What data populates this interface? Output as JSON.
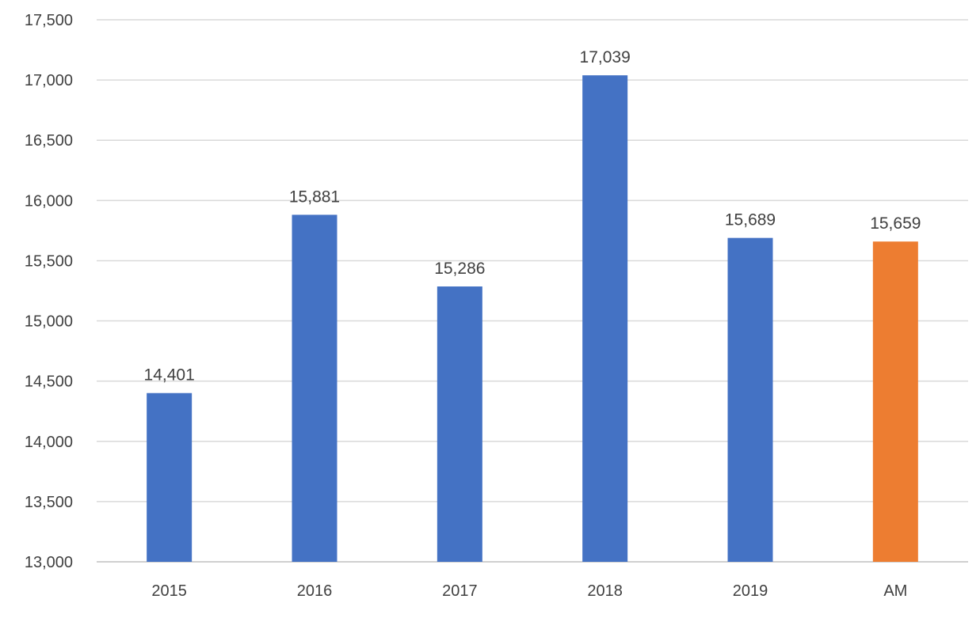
{
  "chart_data": {
    "type": "bar",
    "title": "",
    "xlabel": "",
    "ylabel": "",
    "categories": [
      "2015",
      "2016",
      "2017",
      "2018",
      "2019",
      "AM"
    ],
    "values": [
      14401,
      15881,
      15286,
      17039,
      15689,
      15659
    ],
    "data_labels": [
      "14,401",
      "15,881",
      "15,286",
      "17,039",
      "15,689",
      "15,659"
    ],
    "bar_colors": [
      "#4472c4",
      "#4472c4",
      "#4472c4",
      "#4472c4",
      "#4472c4",
      "#ed7d31"
    ],
    "ylim": [
      13000,
      17500
    ],
    "yticks": [
      13000,
      13500,
      14000,
      14500,
      15000,
      15500,
      16000,
      16500,
      17000,
      17500
    ],
    "ytick_labels": [
      "13,000",
      "13,500",
      "14,000",
      "14,500",
      "15,000",
      "15,500",
      "16,000",
      "16,500",
      "17,000",
      "17,500"
    ],
    "grid": true,
    "legend": "none",
    "colors": {
      "primary_series": "#4472c4",
      "highlight_bar": "#ed7d31",
      "gridline": "#d9d9d9",
      "text": "#404040"
    }
  }
}
